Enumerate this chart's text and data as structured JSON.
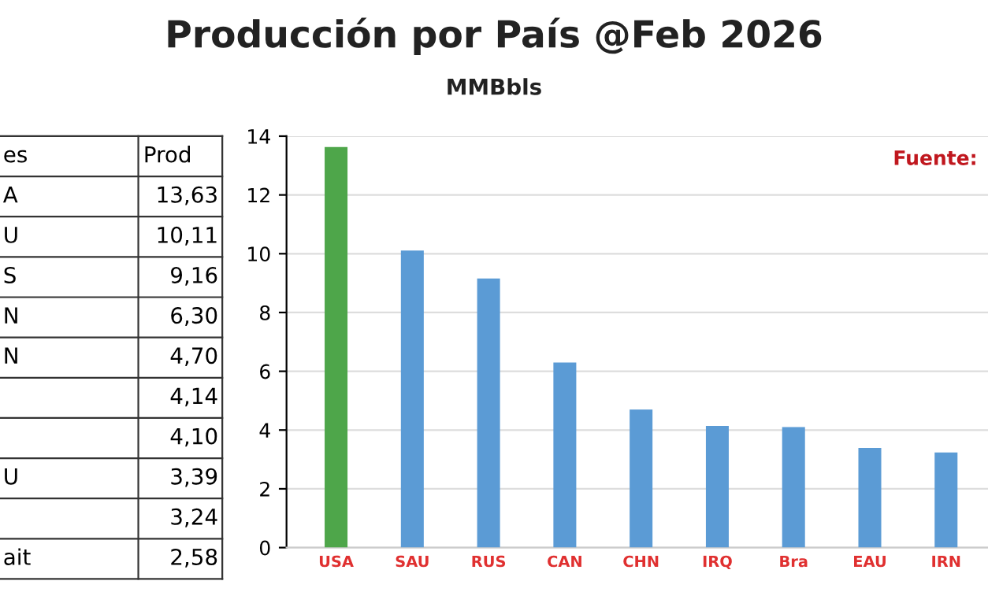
{
  "chart_data": {
    "type": "bar",
    "title": "Producción por País @Feb 2026",
    "subtitle": "MMBbls",
    "categories": [
      "USA",
      "SAU",
      "RUS",
      "CAN",
      "CHN",
      "IRQ",
      "Bra",
      "EAU",
      "IRN"
    ],
    "values": [
      13.63,
      10.11,
      9.16,
      6.3,
      4.7,
      4.14,
      4.1,
      3.39,
      3.24
    ],
    "colors": [
      "#4ea64a",
      "#5b9bd5",
      "#5b9bd5",
      "#5b9bd5",
      "#5b9bd5",
      "#5b9bd5",
      "#5b9bd5",
      "#5b9bd5",
      "#5b9bd5"
    ],
    "ylim": [
      0,
      14
    ],
    "yticks": [
      0,
      2,
      4,
      6,
      8,
      10,
      12,
      14
    ],
    "grid": "y",
    "annotations": [
      "Fuente:",
      "es",
      "Prod",
      "A",
      "13,63",
      "U",
      "10,11",
      "S",
      "9,16",
      "N",
      "6,30",
      "N",
      "4,70",
      "4,14",
      "4,10",
      "U",
      "3,39",
      "3,24",
      "ait",
      "2,58"
    ]
  }
}
